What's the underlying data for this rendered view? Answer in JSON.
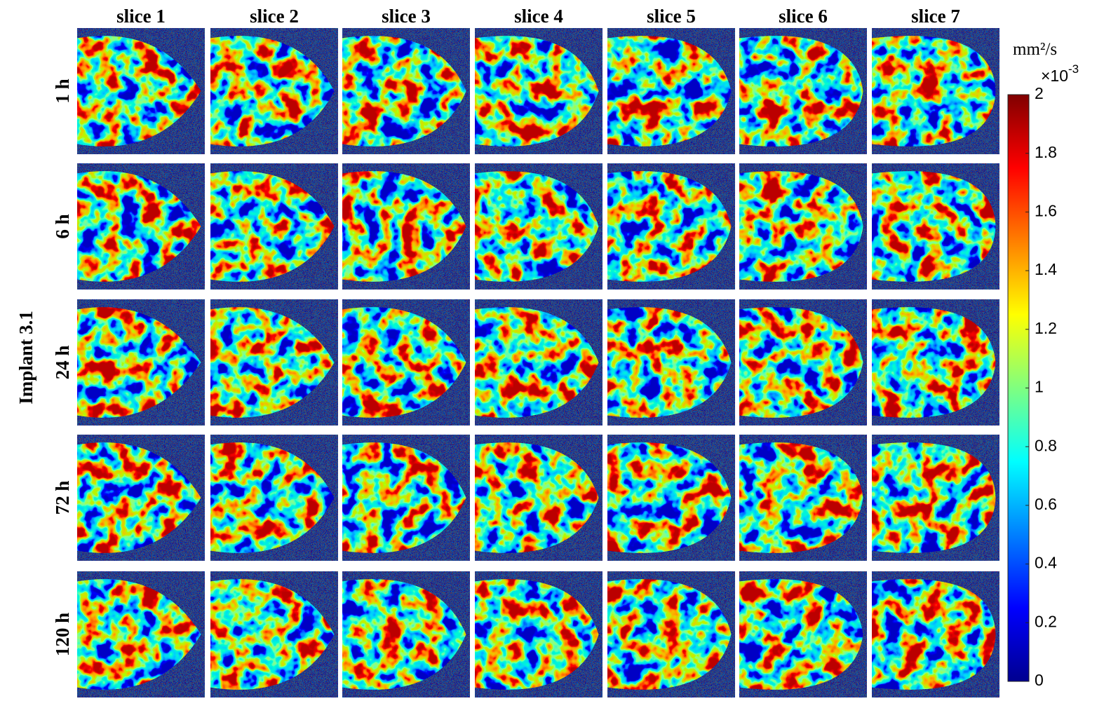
{
  "figure": {
    "row_group_label": "Implant 3.1",
    "columns": [
      "slice 1",
      "slice 2",
      "slice 3",
      "slice 4",
      "slice 5",
      "slice 6",
      "slice 7"
    ],
    "rows": [
      "1 h",
      "6 h",
      "24 h",
      "72 h",
      "120 h"
    ]
  },
  "chart_data": {
    "type": "colorbar",
    "title": "mm²/s",
    "multiplier": {
      "base": "×10",
      "exponent": "-3"
    },
    "colormap": "jet",
    "ylim": [
      0,
      2
    ],
    "yticks": [
      0,
      0.2,
      0.4,
      0.6,
      0.8,
      1,
      1.2,
      1.4,
      1.6,
      1.8,
      2
    ]
  }
}
